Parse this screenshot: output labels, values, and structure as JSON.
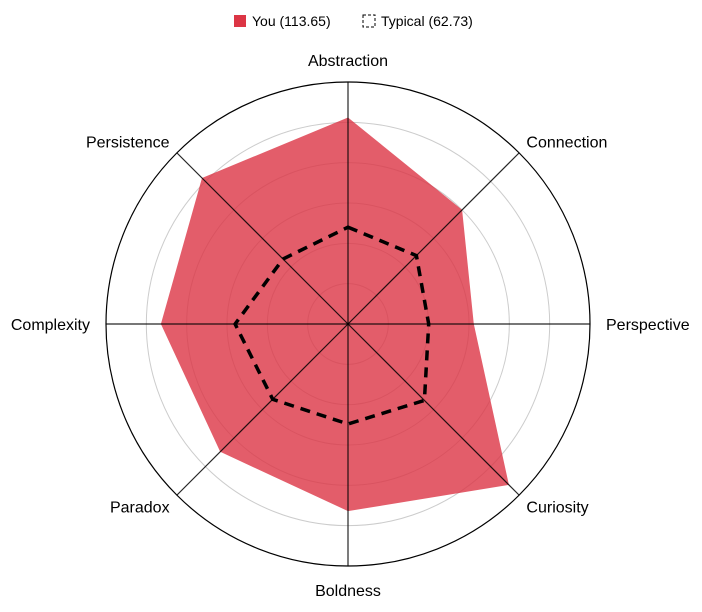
{
  "chart_data": {
    "type": "radar",
    "title": "",
    "axes": [
      "Abstraction",
      "Connection",
      "Perspective",
      "Curiosity",
      "Boldness",
      "Paradox",
      "Complexity",
      "Persistence"
    ],
    "r_max": 150,
    "r_grid": [
      25,
      50,
      75,
      100,
      125,
      150
    ],
    "grid": true,
    "legend_position": "top-center",
    "series": [
      {
        "name": "You (113.65)",
        "values": [
          128,
          100,
          78,
          141,
          116,
          112,
          116,
          128
        ],
        "color": "#dc3545",
        "fill_opacity": 0.8,
        "style": "filled"
      },
      {
        "name": "Typical (62.73)",
        "values": [
          60,
          60,
          50,
          67,
          62,
          66,
          70,
          57
        ],
        "color": "#000000",
        "style": "dashed"
      }
    ]
  }
}
